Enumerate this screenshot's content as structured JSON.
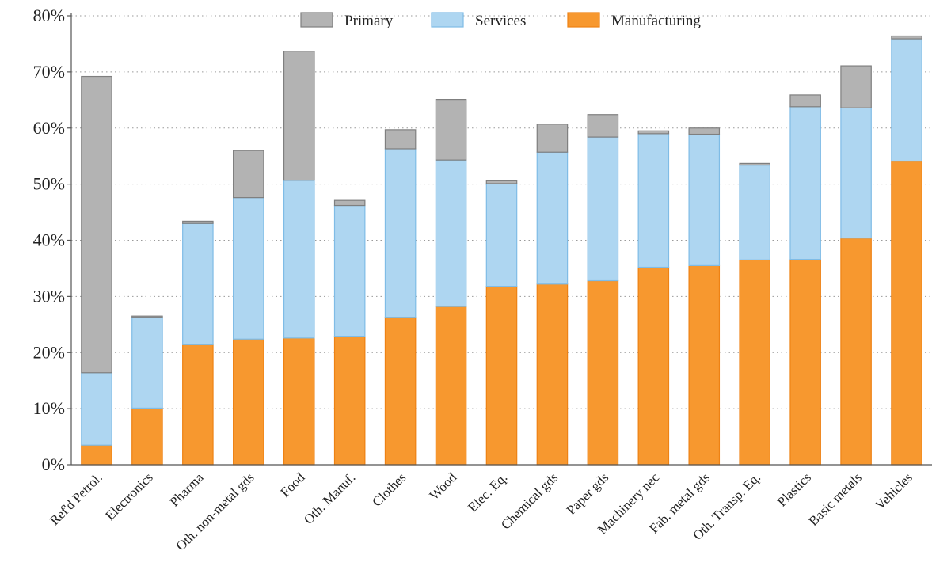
{
  "chart_data": {
    "type": "bar",
    "stacked": true,
    "title": "",
    "xlabel": "",
    "ylabel": "",
    "ylim": [
      0,
      80
    ],
    "y_ticks": [
      0,
      10,
      20,
      30,
      40,
      50,
      60,
      70,
      80
    ],
    "y_tick_labels": [
      "0%",
      "10%",
      "20%",
      "30%",
      "40%",
      "50%",
      "60%",
      "70%",
      "80%"
    ],
    "grid": true,
    "legend_position": "top-center",
    "categories": [
      "Ref'd Petrol.",
      "Electronics",
      "Pharma",
      "Oth. non-metal gds",
      "Food",
      "Oth. Manuf.",
      "Clothes",
      "Wood",
      "Elec. Eq.",
      "Chemical gds",
      "Paper gds",
      "Machinery nec",
      "Fab. metal gds",
      "Oth. Transp. Eq.",
      "Plastics",
      "Basic metals",
      "Vehicles"
    ],
    "series": [
      {
        "name": "Manufacturing",
        "color": "#F7982F",
        "edge": "#EE8214",
        "values": [
          3.5,
          10.1,
          21.4,
          22.4,
          22.6,
          22.8,
          26.2,
          28.2,
          31.8,
          32.2,
          32.8,
          35.2,
          35.5,
          36.5,
          36.6,
          40.4,
          54.1
        ]
      },
      {
        "name": "Services",
        "color": "#AED6F1",
        "edge": "#7FBCE6",
        "values": [
          12.9,
          16.1,
          21.6,
          25.2,
          28.1,
          23.4,
          30.1,
          26.1,
          18.3,
          23.5,
          25.6,
          23.8,
          23.4,
          16.9,
          27.2,
          23.2,
          21.8
        ]
      },
      {
        "name": "Primary",
        "color": "#B3B3B3",
        "edge": "#7F7F7F",
        "values": [
          52.8,
          0.3,
          0.4,
          8.4,
          23.0,
          0.9,
          3.4,
          10.8,
          0.5,
          5.0,
          4.0,
          0.5,
          1.1,
          0.3,
          2.1,
          7.5,
          0.5
        ]
      }
    ]
  }
}
